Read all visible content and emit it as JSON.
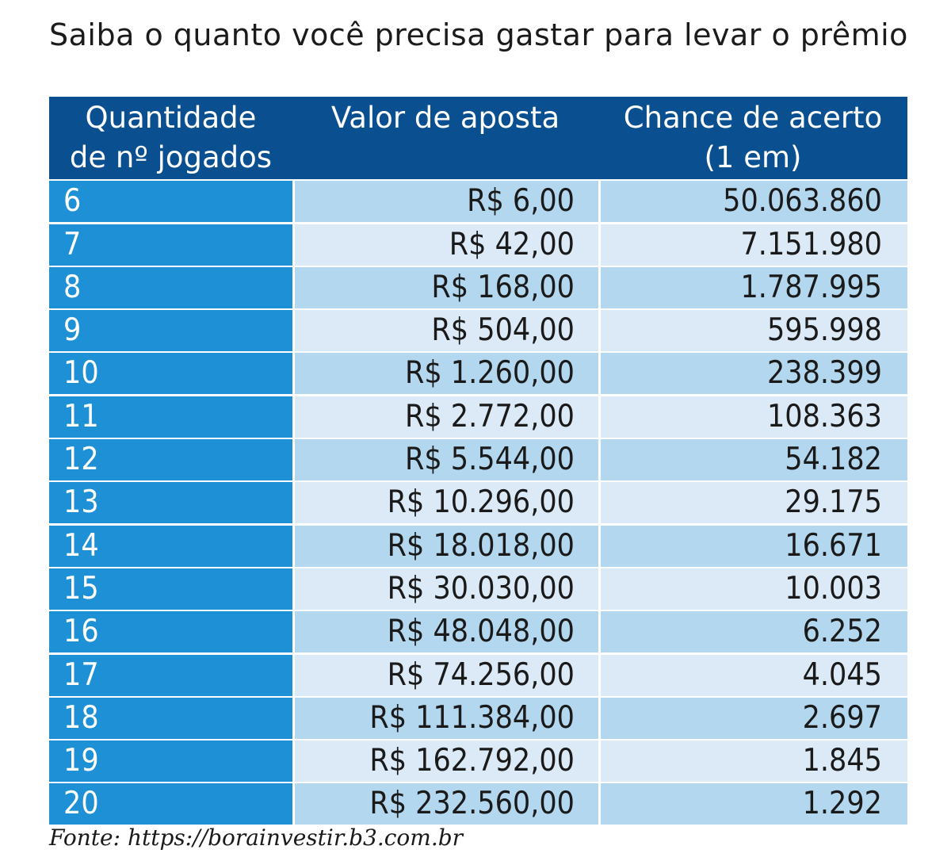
{
  "title": "Saiba o quanto você precisa gastar para levar o prêmio",
  "source": "Fonte: https://borainvestir.b3.com.br",
  "colors": {
    "header_bg": "#0a4f8f",
    "first_col_bg": "#1e90d6",
    "row_dark": "#b3d7ef",
    "row_light": "#dceaf7"
  },
  "chart_data": {
    "type": "table",
    "columns": [
      "Quantidade\nde nº jogados",
      "Valor de aposta",
      "Chance de acerto\n(1 em)"
    ],
    "rows": [
      [
        "6",
        "R$ 6,00",
        "50.063.860"
      ],
      [
        "7",
        "R$ 42,00",
        "7.151.980"
      ],
      [
        "8",
        "R$ 168,00",
        "1.787.995"
      ],
      [
        "9",
        "R$ 504,00",
        "595.998"
      ],
      [
        "10",
        "R$ 1.260,00",
        "238.399"
      ],
      [
        "11",
        "R$ 2.772,00",
        "108.363"
      ],
      [
        "12",
        "R$ 5.544,00",
        "54.182"
      ],
      [
        "13",
        "R$ 10.296,00",
        "29.175"
      ],
      [
        "14",
        "R$ 18.018,00",
        "16.671"
      ],
      [
        "15",
        "R$ 30.030,00",
        "10.003"
      ],
      [
        "16",
        "R$ 48.048,00",
        "6.252"
      ],
      [
        "17",
        "R$ 74.256,00",
        "4.045"
      ],
      [
        "18",
        "R$ 111.384,00",
        "2.697"
      ],
      [
        "19",
        "R$ 162.792,00",
        "1.845"
      ],
      [
        "20",
        "R$ 232.560,00",
        "1.292"
      ]
    ]
  }
}
